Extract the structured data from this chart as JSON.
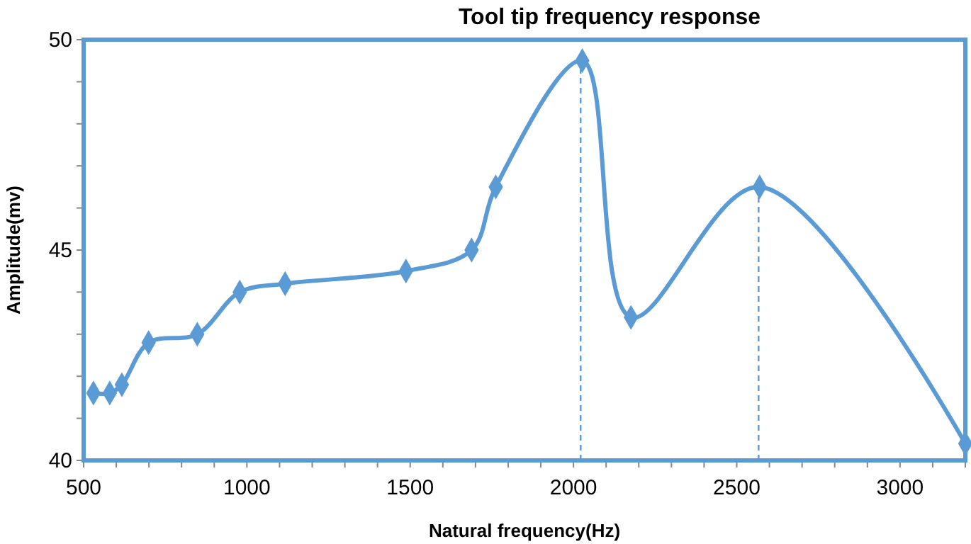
{
  "chart_data": {
    "type": "line",
    "title": "Tool tip frequency response",
    "xlabel": "Natural frequency(Hz)",
    "ylabel": "Amplitude(mv)",
    "x": [
      530,
      580,
      617,
      699,
      848,
      978,
      1117,
      1487,
      1688,
      1762,
      2027,
      2176,
      2570,
      3200
    ],
    "series": [
      {
        "color": "#5b9bd5",
        "values": [
          41.6,
          41.6,
          41.8,
          42.8,
          43.0,
          44.0,
          44.2,
          44.5,
          45.0,
          46.5,
          49.5,
          43.4,
          46.5,
          40.4
        ]
      }
    ],
    "xlim": [
      500,
      3200
    ],
    "xticks": [
      500,
      1000,
      1500,
      2000,
      2500,
      3000
    ],
    "ylim": [
      40,
      50
    ],
    "yticks": [
      40,
      45,
      50
    ],
    "ref_lines": [
      {
        "axis": "x",
        "value": 2022,
        "color": "#5b9bd5",
        "line_style": "dashed"
      },
      {
        "axis": "x",
        "value": 2567,
        "color": "#5b9bd5",
        "line_style": "dashed"
      }
    ],
    "marker": "diamond",
    "line_style": "solid"
  }
}
